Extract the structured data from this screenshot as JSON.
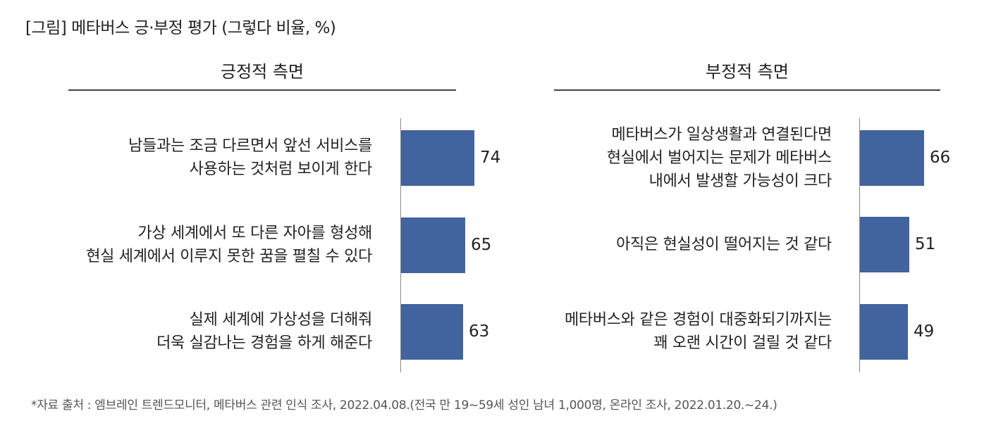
{
  "title": "[그림] 메타버스 긍·부정 평가 (그렇다 비율, %)",
  "chart_data": [
    {
      "type": "bar",
      "orientation": "horizontal",
      "title": "긍정적 측면",
      "categories": [
        [
          "남들과는 조금 다르면서 앞선 서비스를",
          "사용하는 것처럼 보이게 한다"
        ],
        [
          "가상 세계에서 또 다른 자아를 형성해",
          "현실 세계에서 이루지 못한 꿈을 펼칠 수 있다"
        ],
        [
          "실제 세계에 가상성을 더해줘",
          "더욱 실감나는 경험을 하게 해준다"
        ]
      ],
      "values": [
        74,
        65,
        63
      ],
      "bar_color": "#41639e",
      "xlim": [
        0,
        100
      ],
      "grid": false
    },
    {
      "type": "bar",
      "orientation": "horizontal",
      "title": "부정적 측면",
      "categories": [
        [
          "메타버스가 일상생활과 연결된다면",
          "현실에서 벌어지는 문제가 메타버스",
          "내에서 발생할 가능성이 크다"
        ],
        [
          "아직은 현실성이 떨어지는 것 같다"
        ],
        [
          "메타버스와 같은 경험이 대중화되기까지는",
          "꽤 오랜 시간이 걸릴 것 같다"
        ]
      ],
      "values": [
        66,
        51,
        49
      ],
      "bar_color": "#41639e",
      "xlim": [
        0,
        100
      ],
      "grid": false
    }
  ],
  "source": "*자료 출처 : 엠브레인 트렌드모니터, 메타버스 관련 인식 조사, 2022.04.08.(전국 만 19~59세 성인 남녀 1,000명, 온라인 조사, 2022.01.20.~24.)"
}
